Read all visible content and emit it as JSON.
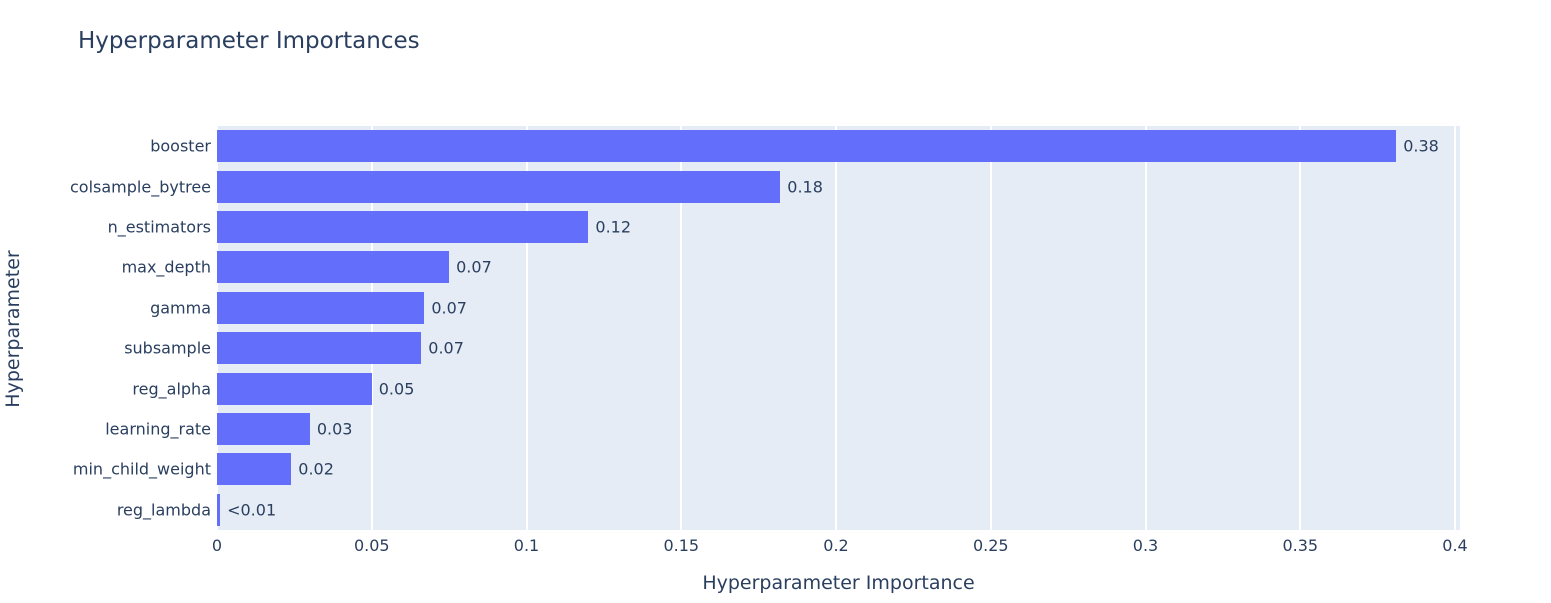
{
  "chart_data": {
    "type": "bar",
    "orientation": "horizontal",
    "title": "Hyperparameter Importances",
    "xlabel": "Hyperparameter Importance",
    "ylabel": "Hyperparameter",
    "categories": [
      "booster",
      "colsample_bytree",
      "n_estimators",
      "max_depth",
      "gamma",
      "subsample",
      "reg_alpha",
      "learning_rate",
      "min_child_weight",
      "reg_lambda"
    ],
    "values": [
      0.381,
      0.182,
      0.12,
      0.075,
      0.067,
      0.066,
      0.05,
      0.03,
      0.024,
      0.001
    ],
    "value_labels": [
      "0.38",
      "0.18",
      "0.12",
      "0.07",
      "0.07",
      "0.07",
      "0.05",
      "0.03",
      "0.02",
      "<0.01"
    ],
    "xticks": [
      0,
      0.05,
      0.1,
      0.15,
      0.2,
      0.25,
      0.3,
      0.35,
      0.4
    ],
    "xtick_labels": [
      "0",
      "0.05",
      "0.1",
      "0.15",
      "0.2",
      "0.25",
      "0.3",
      "0.35",
      "0.4"
    ],
    "xlim": [
      0,
      0.4016
    ],
    "grid": true,
    "legend_position": "none",
    "colors": {
      "bar": "#636efa",
      "plot_background": "#e5ecf6",
      "gridline": "#ffffff",
      "text": "#2a3f5f",
      "page_background": "#ffffff"
    }
  }
}
